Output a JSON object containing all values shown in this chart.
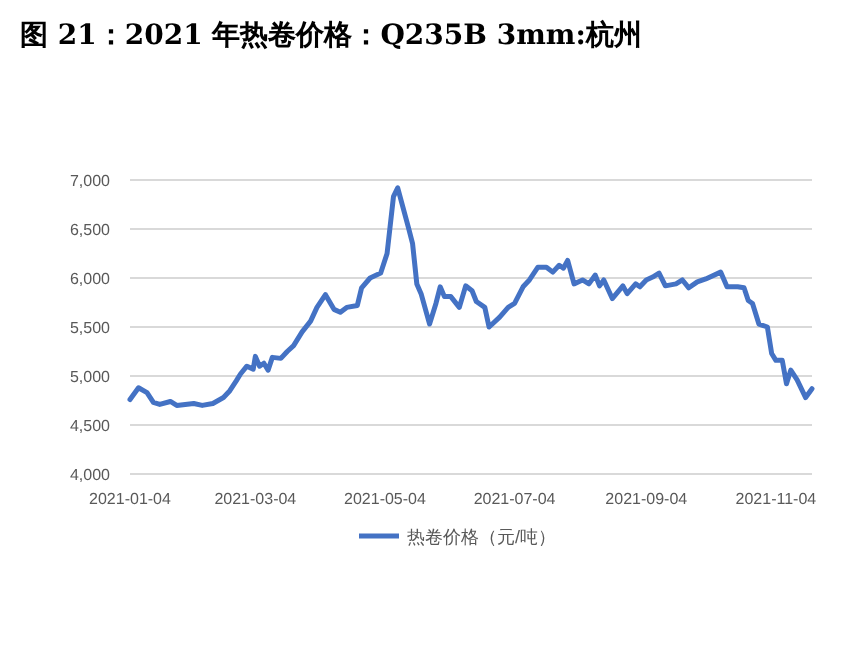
{
  "chart_data": {
    "type": "line",
    "title": "图 21：2021 年热卷价格：Q235B 3mm:杭州",
    "x": [
      "2021-01-04",
      "2021-01-08",
      "2021-01-12",
      "2021-01-15",
      "2021-01-18",
      "2021-01-23",
      "2021-01-26",
      "2021-02-03",
      "2021-02-07",
      "2021-02-12",
      "2021-02-17",
      "2021-02-20",
      "2021-02-23",
      "2021-02-25",
      "2021-02-28",
      "2021-03-03",
      "2021-03-04",
      "2021-03-06",
      "2021-03-08",
      "2021-03-10",
      "2021-03-12",
      "2021-03-16",
      "2021-03-19",
      "2021-03-22",
      "2021-03-26",
      "2021-03-30",
      "2021-04-02",
      "2021-04-06",
      "2021-04-10",
      "2021-04-13",
      "2021-04-16",
      "2021-04-21",
      "2021-04-23",
      "2021-04-27",
      "2021-05-02",
      "2021-05-05",
      "2021-05-08",
      "2021-05-10",
      "2021-05-15",
      "2021-05-17",
      "2021-05-19",
      "2021-05-21",
      "2021-05-25",
      "2021-05-28",
      "2021-05-30",
      "2021-06-01",
      "2021-06-04",
      "2021-06-08",
      "2021-06-11",
      "2021-06-14",
      "2021-06-16",
      "2021-06-20",
      "2021-06-22",
      "2021-06-27",
      "2021-07-01",
      "2021-07-04",
      "2021-07-08",
      "2021-07-11",
      "2021-07-15",
      "2021-07-19",
      "2021-07-22",
      "2021-07-25",
      "2021-07-27",
      "2021-07-29",
      "2021-08-01",
      "2021-08-05",
      "2021-08-08",
      "2021-08-11",
      "2021-08-13",
      "2021-08-15",
      "2021-08-19",
      "2021-08-24",
      "2021-08-26",
      "2021-08-30",
      "2021-09-01",
      "2021-09-04",
      "2021-09-07",
      "2021-09-10",
      "2021-09-13",
      "2021-09-18",
      "2021-09-21",
      "2021-09-24",
      "2021-09-28",
      "2021-10-02",
      "2021-10-09",
      "2021-10-12",
      "2021-10-17",
      "2021-10-20",
      "2021-10-22",
      "2021-10-24",
      "2021-10-27",
      "2021-10-31",
      "2021-11-02",
      "2021-11-04",
      "2021-11-07",
      "2021-11-09",
      "2021-11-11",
      "2021-11-14",
      "2021-11-18",
      "2021-11-21"
    ],
    "series": [
      {
        "name": "热卷价格（元/吨）",
        "color": "#4472c4",
        "values": [
          4760,
          4880,
          4830,
          4730,
          4710,
          4740,
          4700,
          4720,
          4700,
          4720,
          4780,
          4850,
          4950,
          5020,
          5100,
          5070,
          5200,
          5100,
          5130,
          5060,
          5190,
          5180,
          5250,
          5310,
          5450,
          5560,
          5700,
          5830,
          5680,
          5650,
          5700,
          5720,
          5900,
          6000,
          6050,
          6250,
          6830,
          6920,
          6520,
          6350,
          5940,
          5840,
          5530,
          5740,
          5910,
          5810,
          5810,
          5700,
          5920,
          5870,
          5760,
          5700,
          5500,
          5600,
          5700,
          5740,
          5910,
          5980,
          6110,
          6110,
          6060,
          6130,
          6100,
          6180,
          5940,
          5980,
          5940,
          6030,
          5920,
          5980,
          5790,
          5920,
          5840,
          5940,
          5910,
          5980,
          6010,
          6050,
          5920,
          5940,
          5980,
          5900,
          5960,
          5990,
          6060,
          5910,
          5910,
          5900,
          5770,
          5740,
          5530,
          5500,
          5230,
          5160,
          5160,
          4920,
          5060,
          4960,
          4780,
          4870
        ]
      }
    ],
    "xlim": [
      "2021-01-04",
      "2021-11-21"
    ],
    "xticks": [
      "2021-01-04",
      "2021-03-04",
      "2021-05-04",
      "2021-07-04",
      "2021-09-04",
      "2021-11-04"
    ],
    "ylim": [
      4000,
      7000
    ],
    "yticks": [
      {
        "value": 4000,
        "label": "4,000"
      },
      {
        "value": 4500,
        "label": "4,500"
      },
      {
        "value": 5000,
        "label": "5,000"
      },
      {
        "value": 5500,
        "label": "5,500"
      },
      {
        "value": 6000,
        "label": "6,000"
      },
      {
        "value": 6500,
        "label": "6,500"
      },
      {
        "value": 7000,
        "label": "7,000"
      }
    ],
    "grid": "y",
    "legend": "bottom",
    "line_style": "solid",
    "marker": "none"
  }
}
